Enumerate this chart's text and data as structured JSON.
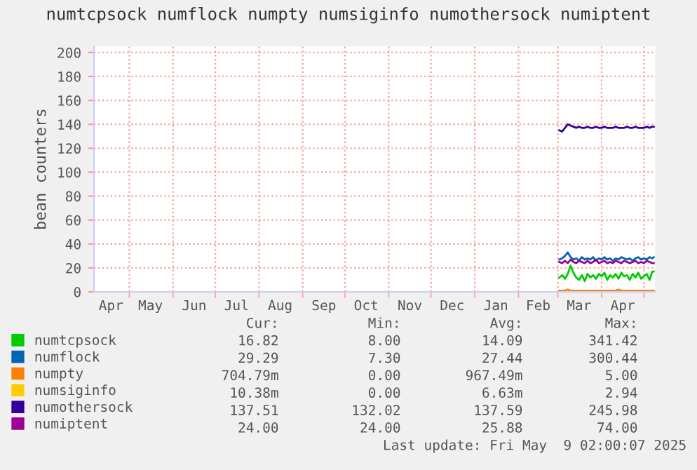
{
  "chart_data": {
    "type": "line",
    "title": "numtcpsock numflock numpty numsiginfo numothersock numiptent",
    "ylabel": "bean counters",
    "x": [
      "2025-03-02",
      "2025-03-04",
      "2025-03-06",
      "2025-03-08",
      "2025-03-10",
      "2025-03-12",
      "2025-03-14",
      "2025-03-16",
      "2025-03-18",
      "2025-03-20",
      "2025-03-22",
      "2025-03-24",
      "2025-03-26",
      "2025-03-28",
      "2025-03-30",
      "2025-04-01",
      "2025-04-03",
      "2025-04-05",
      "2025-04-07",
      "2025-04-09",
      "2025-04-11",
      "2025-04-13",
      "2025-04-15",
      "2025-04-17",
      "2025-04-19",
      "2025-04-21",
      "2025-04-23",
      "2025-04-25",
      "2025-04-27",
      "2025-04-29",
      "2025-05-01",
      "2025-05-03",
      "2025-05-05",
      "2025-05-07",
      "2025-05-08"
    ],
    "series": [
      {
        "name": "numtcpsock",
        "color": "#00cc00",
        "values": [
          12,
          14,
          11,
          15,
          22,
          16,
          12,
          10,
          14,
          9,
          15,
          12,
          14,
          11,
          15,
          13,
          16,
          10,
          14,
          12,
          15,
          11,
          16,
          13,
          14,
          10,
          15,
          12,
          16,
          11,
          13,
          15,
          10,
          17,
          17
        ]
      },
      {
        "name": "numflock",
        "color": "#0066b3",
        "values": [
          27,
          28,
          30,
          33,
          29,
          27,
          28,
          26,
          29,
          27,
          28,
          27,
          29,
          26,
          28,
          27,
          29,
          27,
          28,
          26,
          28,
          27,
          29,
          28,
          27,
          28,
          26,
          28,
          29,
          27,
          28,
          27,
          29,
          28,
          29
        ]
      },
      {
        "name": "numpty",
        "color": "#ff8000",
        "values": [
          1,
          1,
          1,
          2,
          1,
          1,
          1,
          1,
          1,
          1,
          1,
          1,
          1,
          1,
          1,
          1,
          1,
          1,
          1,
          1,
          1,
          2,
          1,
          1,
          1,
          1,
          1,
          1,
          1,
          1,
          1,
          1,
          1,
          1,
          1
        ]
      },
      {
        "name": "numsiginfo",
        "color": "#ffcc00",
        "values": [
          null,
          null,
          null,
          null,
          null,
          null,
          null,
          null,
          null,
          null,
          null,
          null,
          null,
          null,
          null,
          null,
          null,
          null,
          null,
          null,
          null,
          null,
          null,
          null,
          null,
          null,
          null,
          null,
          null,
          null,
          null,
          null,
          null,
          null,
          null
        ]
      },
      {
        "name": "numothersock",
        "color": "#330099",
        "values": [
          135,
          134,
          137,
          140,
          139,
          138,
          137,
          138,
          137,
          137,
          138,
          137,
          137,
          138,
          137,
          137,
          138,
          137,
          137,
          137,
          138,
          137,
          137,
          137,
          138,
          137,
          137,
          138,
          137,
          137,
          137,
          138,
          137,
          138,
          138
        ]
      },
      {
        "name": "numiptent",
        "color": "#990099",
        "values": [
          25,
          24,
          26,
          24,
          27,
          25,
          24,
          26,
          25,
          24,
          26,
          24,
          25,
          27,
          24,
          25,
          26,
          24,
          25,
          24,
          26,
          25,
          24,
          26,
          25,
          24,
          25,
          26,
          24,
          25,
          24,
          26,
          25,
          24,
          24
        ]
      }
    ],
    "xlim": [
      "2024-04-06",
      "2025-05-09"
    ],
    "xticks": [
      {
        "value": "2024-04-18",
        "label": "Apr"
      },
      {
        "value": "2024-05-01",
        "label": null
      },
      {
        "value": "2024-05-16",
        "label": "May"
      },
      {
        "value": "2024-06-01",
        "label": null
      },
      {
        "value": "2024-06-16",
        "label": "Jun"
      },
      {
        "value": "2024-07-01",
        "label": null
      },
      {
        "value": "2024-07-16",
        "label": "Jul"
      },
      {
        "value": "2024-08-01",
        "label": null
      },
      {
        "value": "2024-08-16",
        "label": "Aug"
      },
      {
        "value": "2024-09-01",
        "label": null
      },
      {
        "value": "2024-09-16",
        "label": "Sep"
      },
      {
        "value": "2024-10-01",
        "label": null
      },
      {
        "value": "2024-10-16",
        "label": "Oct"
      },
      {
        "value": "2024-11-01",
        "label": null
      },
      {
        "value": "2024-11-16",
        "label": "Nov"
      },
      {
        "value": "2024-12-01",
        "label": null
      },
      {
        "value": "2024-12-16",
        "label": "Dec"
      },
      {
        "value": "2025-01-01",
        "label": null
      },
      {
        "value": "2025-01-16",
        "label": "Jan"
      },
      {
        "value": "2025-02-01",
        "label": null
      },
      {
        "value": "2025-02-15",
        "label": "Feb"
      },
      {
        "value": "2025-03-01",
        "label": null
      },
      {
        "value": "2025-03-16",
        "label": "Mar"
      },
      {
        "value": "2025-04-01",
        "label": null
      },
      {
        "value": "2025-04-16",
        "label": "Apr"
      },
      {
        "value": "2025-05-01",
        "label": null
      }
    ],
    "ylim": [
      0,
      205
    ],
    "yticks": [
      0,
      20,
      40,
      60,
      80,
      100,
      120,
      140,
      160,
      180,
      200
    ],
    "grid": true,
    "legend": "bottom",
    "marker": "none",
    "line_style": "solid",
    "annotations": [
      "Cur:",
      "Min:",
      "Avg:",
      "Max:",
      "16.82",
      "8.00",
      "14.09",
      "341.42",
      "29.29",
      "7.30",
      "27.44",
      "300.44",
      "704.79m",
      "0.00",
      "967.49m",
      "5.00",
      "10.38m",
      "0.00",
      "6.63m",
      "2.94",
      "137.51",
      "132.02",
      "137.59",
      "245.98",
      "24.00",
      "24.00",
      "25.88",
      "74.00",
      "Last update: Fri May  9 02:00:07 2025"
    ]
  }
}
